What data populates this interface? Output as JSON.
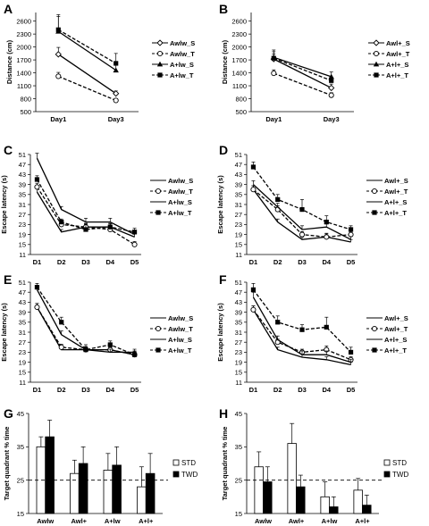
{
  "chart_data": [
    {
      "panel": "A",
      "type": "line",
      "ylabel": "Distance (cm)",
      "categories": [
        "Day1",
        "Day3"
      ],
      "ylim": [
        500,
        2800
      ],
      "yticks": [
        500,
        800,
        1100,
        1400,
        1700,
        2000,
        2300,
        2600
      ],
      "legend": "right",
      "series": [
        {
          "name": "Awlw_S",
          "marker": "diamond-open",
          "dash": false,
          "values": [
            1830,
            920
          ],
          "err": [
            160,
            60
          ]
        },
        {
          "name": "Awlw_T",
          "marker": "circle-open",
          "dash": true,
          "values": [
            1320,
            760
          ],
          "err": [
            90,
            30
          ]
        },
        {
          "name": "A+lw_S",
          "marker": "triangle",
          "dash": false,
          "values": [
            2360,
            1460
          ],
          "err": [
            350,
            180
          ]
        },
        {
          "name": "A+lw_T",
          "marker": "square",
          "dash": true,
          "values": [
            2400,
            1620
          ],
          "err": [
            350,
            230
          ]
        }
      ]
    },
    {
      "panel": "B",
      "type": "line",
      "ylabel": "Distance (cm)",
      "categories": [
        "Day1",
        "Day3"
      ],
      "ylim": [
        500,
        2800
      ],
      "yticks": [
        500,
        800,
        1100,
        1400,
        1700,
        2000,
        2300,
        2600
      ],
      "legend": "right",
      "series": [
        {
          "name": "Awl+_S",
          "marker": "diamond-open",
          "dash": false,
          "values": [
            1720,
            1050
          ],
          "err": [
            120,
            90
          ]
        },
        {
          "name": "Awl+_T",
          "marker": "circle-open",
          "dash": true,
          "values": [
            1390,
            880
          ],
          "err": [
            80,
            60
          ]
        },
        {
          "name": "A+l+_S",
          "marker": "triangle",
          "dash": false,
          "values": [
            1760,
            1310
          ],
          "err": [
            170,
            110
          ]
        },
        {
          "name": "A+l+_T",
          "marker": "square",
          "dash": true,
          "values": [
            1740,
            1220
          ],
          "err": [
            150,
            80
          ]
        }
      ]
    },
    {
      "panel": "C",
      "type": "line",
      "ylabel": "Escape latency (s)",
      "categories": [
        "D1",
        "D2",
        "D3",
        "D4",
        "D5"
      ],
      "ylim": [
        11,
        51
      ],
      "yticks": [
        11,
        15,
        19,
        23,
        27,
        31,
        35,
        39,
        43,
        47,
        51
      ],
      "legend": "right",
      "series": [
        {
          "name": "Awlw_S",
          "marker": "none",
          "dash": false,
          "values": [
            36,
            20,
            22,
            22,
            18
          ],
          "err": [
            1.5,
            1,
            1.2,
            1.2,
            1.2
          ]
        },
        {
          "name": "Awlw_T",
          "marker": "circle-open",
          "dash": true,
          "values": [
            38,
            23,
            22,
            21,
            15
          ],
          "err": [
            1.5,
            1.2,
            1.5,
            1.2,
            1.2
          ]
        },
        {
          "name": "A+lw_S",
          "marker": "none",
          "dash": false,
          "values": [
            49.5,
            29,
            24,
            24,
            19
          ],
          "err": [
            2,
            1.2,
            1.5,
            1.5,
            1.5
          ]
        },
        {
          "name": "A+lw_T",
          "marker": "square",
          "dash": true,
          "values": [
            41,
            24,
            21,
            22,
            20
          ],
          "err": [
            1.5,
            1.2,
            2,
            1.5,
            1.5
          ]
        }
      ]
    },
    {
      "panel": "D",
      "type": "line",
      "ylabel": "Escape latency (s)",
      "categories": [
        "D1",
        "D2",
        "D3",
        "D4",
        "D5"
      ],
      "ylim": [
        11,
        51
      ],
      "yticks": [
        11,
        15,
        19,
        23,
        27,
        31,
        35,
        39,
        43,
        47,
        51
      ],
      "legend": "right",
      "series": [
        {
          "name": "Awl+_S",
          "marker": "none",
          "dash": false,
          "values": [
            37,
            24,
            17,
            18,
            16
          ],
          "err": [
            1.5,
            1.2,
            1,
            1.5,
            1
          ]
        },
        {
          "name": "Awl+_T",
          "marker": "circle-open",
          "dash": true,
          "values": [
            37,
            29,
            19,
            18,
            19
          ],
          "err": [
            1.5,
            1.5,
            1.2,
            1.2,
            1.2
          ]
        },
        {
          "name": "A+l+_S",
          "marker": "none",
          "dash": false,
          "values": [
            39,
            30,
            21,
            22,
            17
          ],
          "err": [
            1.5,
            1.5,
            1.5,
            1.2,
            1.2
          ]
        },
        {
          "name": "A+l+_T",
          "marker": "square",
          "dash": true,
          "values": [
            46,
            33,
            29,
            24,
            21
          ],
          "err": [
            2,
            2,
            4,
            2.5,
            1.5
          ]
        }
      ]
    },
    {
      "panel": "E",
      "type": "line",
      "ylabel": "Escape latency (s)",
      "categories": [
        "D1",
        "D2",
        "D3",
        "D4",
        "D5"
      ],
      "ylim": [
        11,
        51
      ],
      "yticks": [
        11,
        15,
        19,
        23,
        27,
        31,
        35,
        39,
        43,
        47,
        51
      ],
      "legend": "right",
      "series": [
        {
          "name": "Awlw_S",
          "marker": "none",
          "dash": false,
          "values": [
            41,
            24,
            24,
            24,
            22
          ],
          "err": [
            1.5,
            1,
            1,
            1,
            1
          ]
        },
        {
          "name": "Awlw_T",
          "marker": "circle-open",
          "dash": true,
          "values": [
            41,
            25,
            24,
            24,
            22
          ],
          "err": [
            1.5,
            1.2,
            1.2,
            1.2,
            1.2
          ]
        },
        {
          "name": "A+lw_S",
          "marker": "none",
          "dash": false,
          "values": [
            48,
            30,
            24,
            23,
            23
          ],
          "err": [
            1.5,
            1.5,
            1.2,
            1.2,
            1.2
          ]
        },
        {
          "name": "A+lw_T",
          "marker": "square",
          "dash": true,
          "values": [
            49,
            35,
            24,
            26,
            22
          ],
          "err": [
            1.5,
            2,
            2,
            1.5,
            1.5
          ]
        }
      ]
    },
    {
      "panel": "F",
      "type": "line",
      "ylabel": "Escape latency (s)",
      "categories": [
        "D1",
        "D2",
        "D3",
        "D4",
        "D5"
      ],
      "ylim": [
        11,
        51
      ],
      "yticks": [
        11,
        15,
        19,
        23,
        27,
        31,
        35,
        39,
        43,
        47,
        51
      ],
      "legend": "right",
      "series": [
        {
          "name": "Awl+_S",
          "marker": "none",
          "dash": false,
          "values": [
            40,
            24,
            21,
            20,
            18
          ],
          "err": [
            1.5,
            1,
            1.2,
            1.2,
            1
          ]
        },
        {
          "name": "Awl+_T",
          "marker": "circle-open",
          "dash": true,
          "values": [
            40,
            27,
            23,
            24,
            20
          ],
          "err": [
            1.5,
            1.2,
            1.2,
            1.5,
            1.2
          ]
        },
        {
          "name": "A+l+_S",
          "marker": "none",
          "dash": false,
          "values": [
            45,
            28,
            22,
            22,
            19
          ],
          "err": [
            2,
            1.5,
            1.5,
            1.5,
            1.2
          ]
        },
        {
          "name": "A+l+_T",
          "marker": "square",
          "dash": true,
          "values": [
            48,
            35,
            32,
            33,
            23
          ],
          "err": [
            2.5,
            2.5,
            2,
            4,
            2
          ]
        }
      ]
    },
    {
      "panel": "G",
      "type": "bar",
      "ylabel": "Target quadrant % time",
      "categories": [
        "Awlw",
        "Awl+",
        "A+lw",
        "A+l+"
      ],
      "ylim": [
        15,
        45
      ],
      "yticks": [
        15,
        25,
        35,
        45
      ],
      "reference_line": 25,
      "legend": "right",
      "series": [
        {
          "name": "STD",
          "color": "#ffffff",
          "values": [
            35,
            27,
            28,
            23
          ],
          "err": [
            3,
            4,
            5,
            6
          ]
        },
        {
          "name": "TWD",
          "color": "#000000",
          "values": [
            38,
            30,
            29.5,
            27
          ],
          "err": [
            5,
            5,
            5.5,
            6
          ]
        }
      ]
    },
    {
      "panel": "H",
      "type": "bar",
      "ylabel": "Target quadrant % time",
      "categories": [
        "Awlw",
        "Awl+",
        "A+lw",
        "A+l+"
      ],
      "ylim": [
        15,
        45
      ],
      "yticks": [
        15,
        25,
        35,
        45
      ],
      "reference_line": 25,
      "legend": "right",
      "series": [
        {
          "name": "STD",
          "color": "#ffffff",
          "values": [
            29,
            36,
            20,
            22
          ],
          "err": [
            4.5,
            6,
            4.5,
            3.5
          ]
        },
        {
          "name": "TWD",
          "color": "#000000",
          "values": [
            24.5,
            23,
            17,
            17.5
          ],
          "err": [
            4.5,
            3.5,
            3,
            3
          ]
        }
      ]
    }
  ]
}
